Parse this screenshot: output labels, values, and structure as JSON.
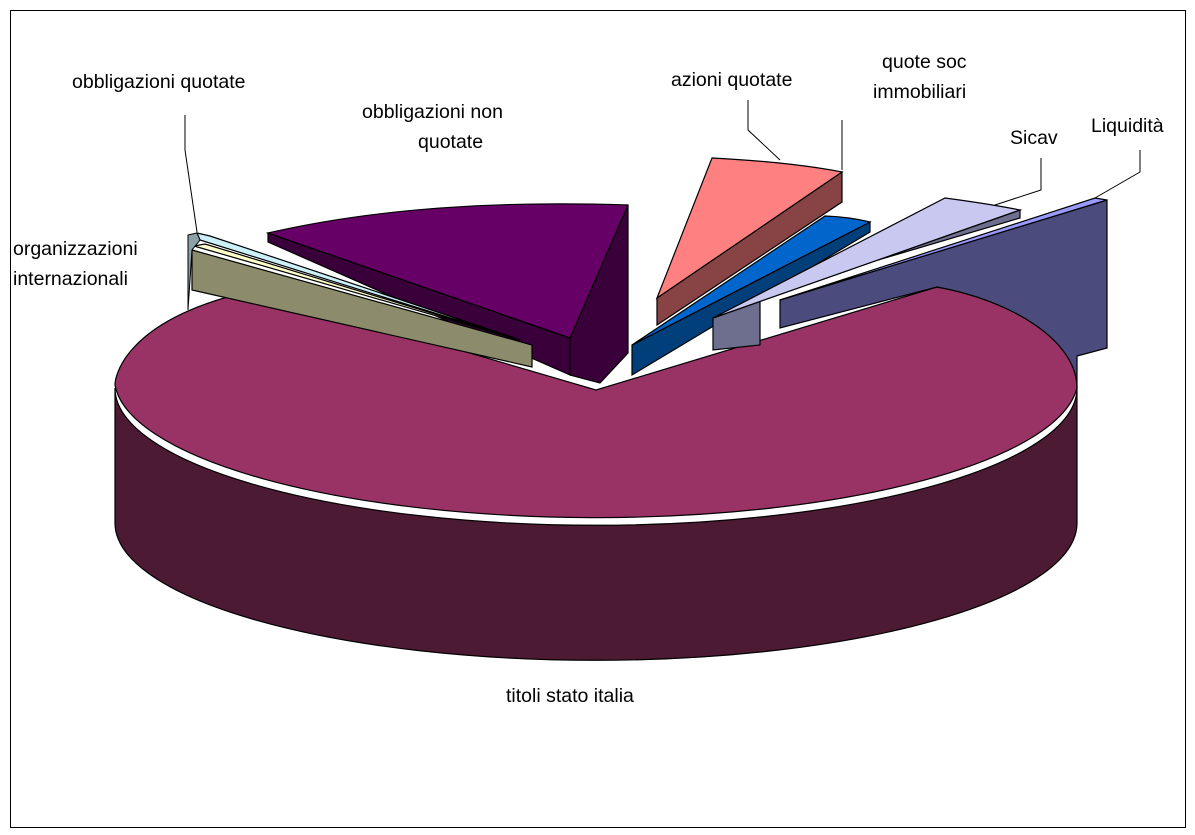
{
  "chart_data": {
    "type": "pie",
    "style": "3d-exploded",
    "title": "",
    "slices": [
      {
        "label": "Liquidità",
        "value": 8.0,
        "color": "#4B4B7E"
      },
      {
        "label": "Sicav",
        "value": 2.0,
        "color": "#C8C8F0"
      },
      {
        "label": "quote soc immobiliari",
        "value": 2.3,
        "color": "#0066CC"
      },
      {
        "label": "azioni quotate",
        "value": 6.0,
        "color": "#FF8080"
      },
      {
        "label": "obbligazioni non quotate",
        "value": 15.0,
        "color": "#660066"
      },
      {
        "label": "obbligazioni quotate",
        "value": 0.7,
        "color": "#CCF0FA"
      },
      {
        "label": "organizzazioni internazionali",
        "value": 0.6,
        "color": "#FFFFCC"
      },
      {
        "label": "",
        "value": 1.4,
        "color": "#8C8C6C"
      },
      {
        "label": "titoli stato italia",
        "value": 64.0,
        "color": "#993366"
      }
    ],
    "legend": "none"
  }
}
